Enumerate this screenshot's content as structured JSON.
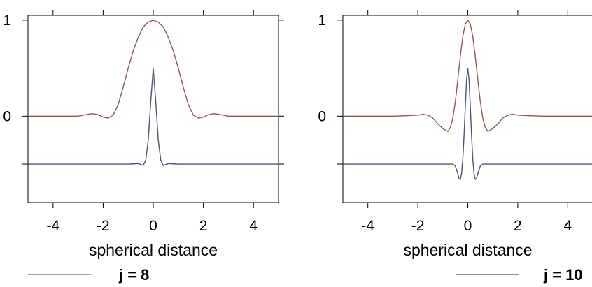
{
  "chart_data": [
    {
      "type": "line",
      "xlabel": "spherical distance",
      "ylabel": "",
      "xlim": [
        -5,
        5
      ],
      "ylim": [
        -0.9,
        1.05
      ],
      "x_ticks": [
        -4,
        -2,
        0,
        2,
        4
      ],
      "y_ticks_labeled": [
        0,
        1
      ],
      "y_ticks_unlabeled": [
        -0.5
      ],
      "grid": false,
      "x_tick_labels": [
        "-4",
        "-2",
        "0",
        "2",
        "4"
      ],
      "y_tick_labels": [
        "0",
        "1"
      ],
      "series": [
        {
          "color": "#8b5a4e",
          "x": [
            -5,
            -4,
            -3,
            -2.8,
            -2.6,
            -2.4,
            -2.2,
            -2,
            -1.8,
            -1.6,
            -1.4,
            -1.2,
            -1,
            -0.8,
            -0.6,
            -0.4,
            -0.2,
            0,
            0.2,
            0.4,
            0.6,
            0.8,
            1,
            1.2,
            1.4,
            1.6,
            1.8,
            2,
            2.2,
            2.4,
            2.6,
            2.8,
            3,
            4,
            5
          ],
          "y": [
            0,
            0,
            0,
            0.01,
            0.02,
            0.025,
            0.015,
            -0.01,
            -0.02,
            0.01,
            0.12,
            0.3,
            0.5,
            0.68,
            0.82,
            0.93,
            0.98,
            1,
            0.98,
            0.93,
            0.82,
            0.68,
            0.5,
            0.3,
            0.12,
            0.01,
            -0.02,
            -0.01,
            0.015,
            0.025,
            0.02,
            0.01,
            0,
            0,
            0
          ]
        },
        {
          "color": "#4a5578",
          "x": [
            -5,
            -2,
            -1,
            -0.8,
            -0.6,
            -0.5,
            -0.4,
            -0.3,
            -0.2,
            -0.1,
            0,
            0.1,
            0.2,
            0.3,
            0.4,
            0.5,
            0.6,
            0.8,
            1,
            2,
            5
          ],
          "y": [
            -0.5,
            -0.5,
            -0.5,
            -0.498,
            -0.495,
            -0.505,
            -0.515,
            -0.46,
            -0.25,
            0.15,
            0.5,
            0.15,
            -0.25,
            -0.46,
            -0.515,
            -0.505,
            -0.495,
            -0.498,
            -0.5,
            -0.5,
            -0.5
          ]
        }
      ],
      "legend": {
        "label": "j = 8",
        "color": "#8b5a4e"
      }
    },
    {
      "type": "line",
      "xlabel": "spherical distance",
      "ylabel": "",
      "xlim": [
        -5,
        5
      ],
      "ylim": [
        -0.9,
        1.05
      ],
      "x_ticks": [
        -4,
        -2,
        0,
        2,
        4
      ],
      "y_ticks_labeled": [
        0,
        1
      ],
      "y_ticks_unlabeled": [
        -0.5
      ],
      "grid": false,
      "x_tick_labels": [
        "-4",
        "-2",
        "0",
        "2",
        "4"
      ],
      "y_tick_labels": [
        "0",
        "1"
      ],
      "series": [
        {
          "color": "#8b5a4e",
          "x": [
            -5,
            -3,
            -2.5,
            -2,
            -1.8,
            -1.6,
            -1.4,
            -1.2,
            -1,
            -0.8,
            -0.7,
            -0.6,
            -0.5,
            -0.4,
            -0.3,
            -0.2,
            -0.1,
            0,
            0.1,
            0.2,
            0.3,
            0.4,
            0.5,
            0.6,
            0.7,
            0.8,
            1,
            1.2,
            1.4,
            1.6,
            1.8,
            2,
            2.5,
            3,
            5
          ],
          "y": [
            0,
            0,
            0.005,
            0.01,
            0.02,
            0.01,
            -0.02,
            -0.08,
            -0.13,
            -0.16,
            -0.12,
            -0.02,
            0.15,
            0.38,
            0.62,
            0.83,
            0.96,
            1,
            0.96,
            0.83,
            0.62,
            0.38,
            0.15,
            -0.02,
            -0.12,
            -0.16,
            -0.13,
            -0.08,
            -0.02,
            0.01,
            0.02,
            0.01,
            0.005,
            0,
            0
          ]
        },
        {
          "color": "#4a5578",
          "x": [
            -5,
            -1,
            -0.6,
            -0.5,
            -0.4,
            -0.35,
            -0.3,
            -0.25,
            -0.2,
            -0.15,
            -0.1,
            -0.05,
            0,
            0.05,
            0.1,
            0.15,
            0.2,
            0.25,
            0.3,
            0.35,
            0.4,
            0.5,
            0.6,
            1,
            5
          ],
          "y": [
            -0.5,
            -0.5,
            -0.5,
            -0.52,
            -0.6,
            -0.65,
            -0.66,
            -0.6,
            -0.45,
            -0.2,
            0.1,
            0.38,
            0.5,
            0.38,
            0.1,
            -0.2,
            -0.45,
            -0.6,
            -0.66,
            -0.65,
            -0.6,
            -0.52,
            -0.5,
            -0.5,
            -0.5
          ]
        }
      ],
      "legend": {
        "label": "j = 10",
        "color": "#4a5578"
      }
    }
  ]
}
